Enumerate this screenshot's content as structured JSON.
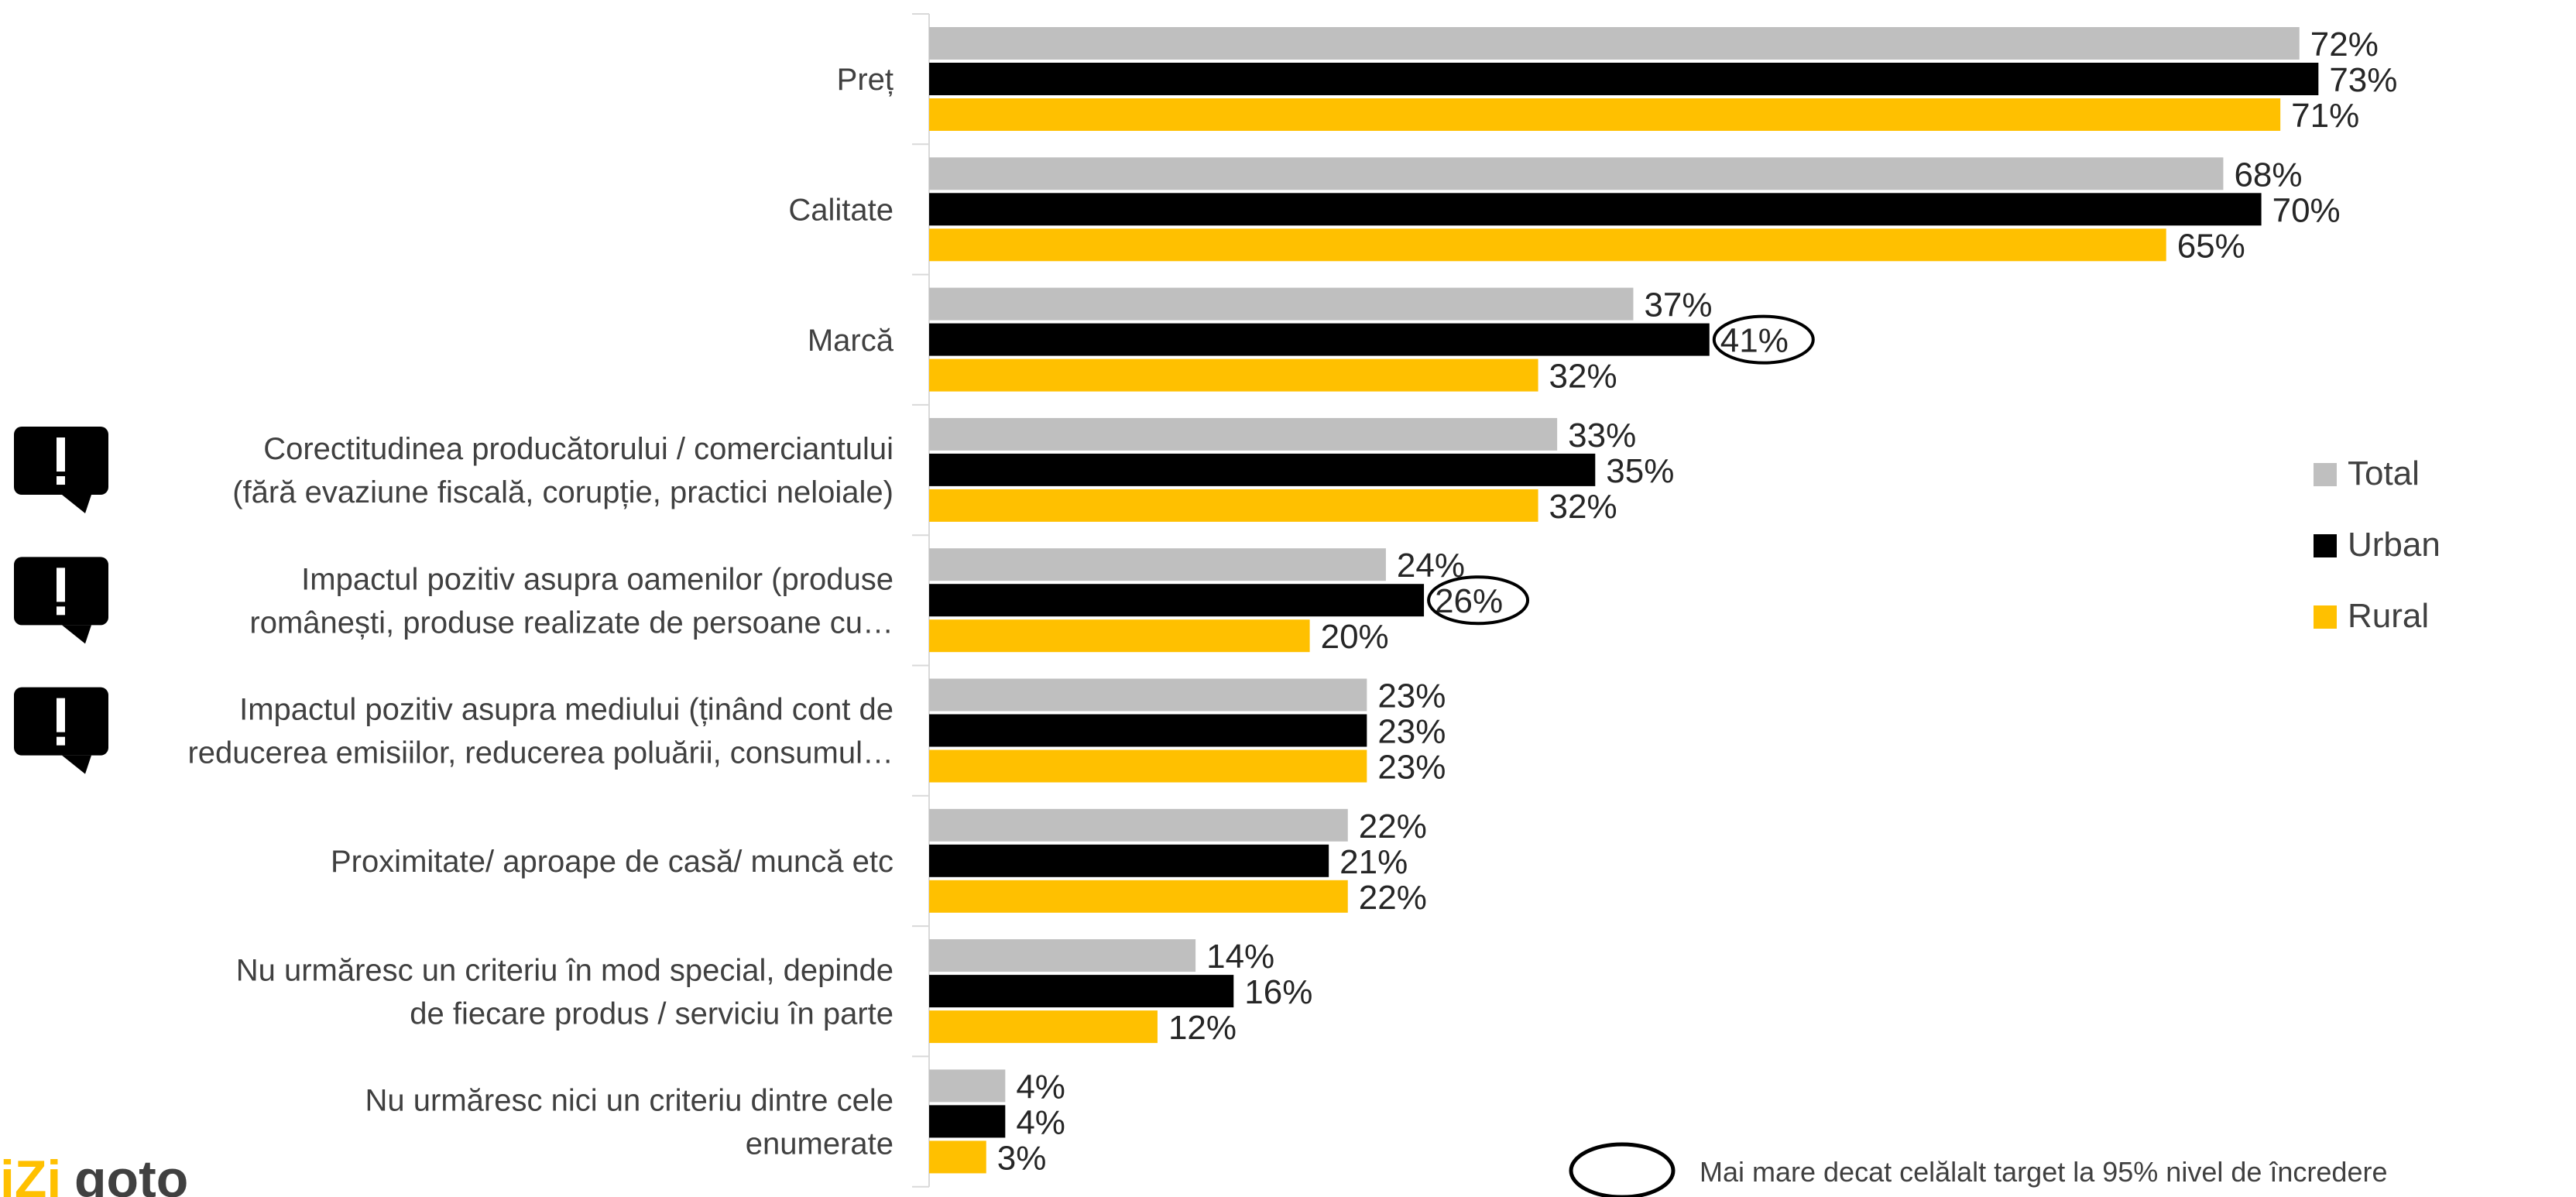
{
  "chart_data": {
    "type": "bar",
    "orientation": "horizontal",
    "categories": [
      [
        "Preț"
      ],
      [
        "Calitate"
      ],
      [
        "Marcă"
      ],
      [
        "Corectitudinea producătorului / comerciantului",
        "(fără evaziune fiscală, corupție, practici neloiale)"
      ],
      [
        "Impactul pozitiv asupra oamenilor (produse",
        "românești, produse realizate de persoane cu…"
      ],
      [
        "Impactul pozitiv asupra mediului (ținând cont de",
        "reducerea emisiilor, reducerea poluării, consumul…"
      ],
      [
        "Proximitate/ aproape de casă/ muncă etc"
      ],
      [
        "Nu urmăresc un criteriu în mod special, depinde",
        "de fiecare produs / serviciu în parte"
      ],
      [
        "Nu urmăresc nici un criteriu dintre cele",
        "enumerate"
      ]
    ],
    "series": [
      {
        "name": "Total",
        "color": "#bfbfbf",
        "values": [
          72,
          68,
          37,
          33,
          24,
          23,
          22,
          14,
          4
        ]
      },
      {
        "name": "Urban",
        "color": "#000000",
        "values": [
          73,
          70,
          41,
          35,
          26,
          23,
          21,
          16,
          4
        ]
      },
      {
        "name": "Rural",
        "color": "#ffc000",
        "values": [
          71,
          65,
          32,
          32,
          20,
          23,
          22,
          12,
          3
        ]
      }
    ],
    "value_suffix": "%",
    "xlim": [
      0,
      100
    ],
    "legend_position": "right",
    "highlighted": [
      {
        "series": "Urban",
        "category_index": 2
      },
      {
        "series": "Urban",
        "category_index": 4
      }
    ],
    "flagged_categories": [
      3,
      4,
      5
    ],
    "flag_icon": "exclamation-speech-bubble-icon",
    "highlight_note": "Mai mare decat celălalt target la 95% nivel de încredere"
  },
  "logo": {
    "name": "izi-logo",
    "text_prefix": "iZi",
    "text_suffix": "goto",
    "color": "#ffc000"
  }
}
